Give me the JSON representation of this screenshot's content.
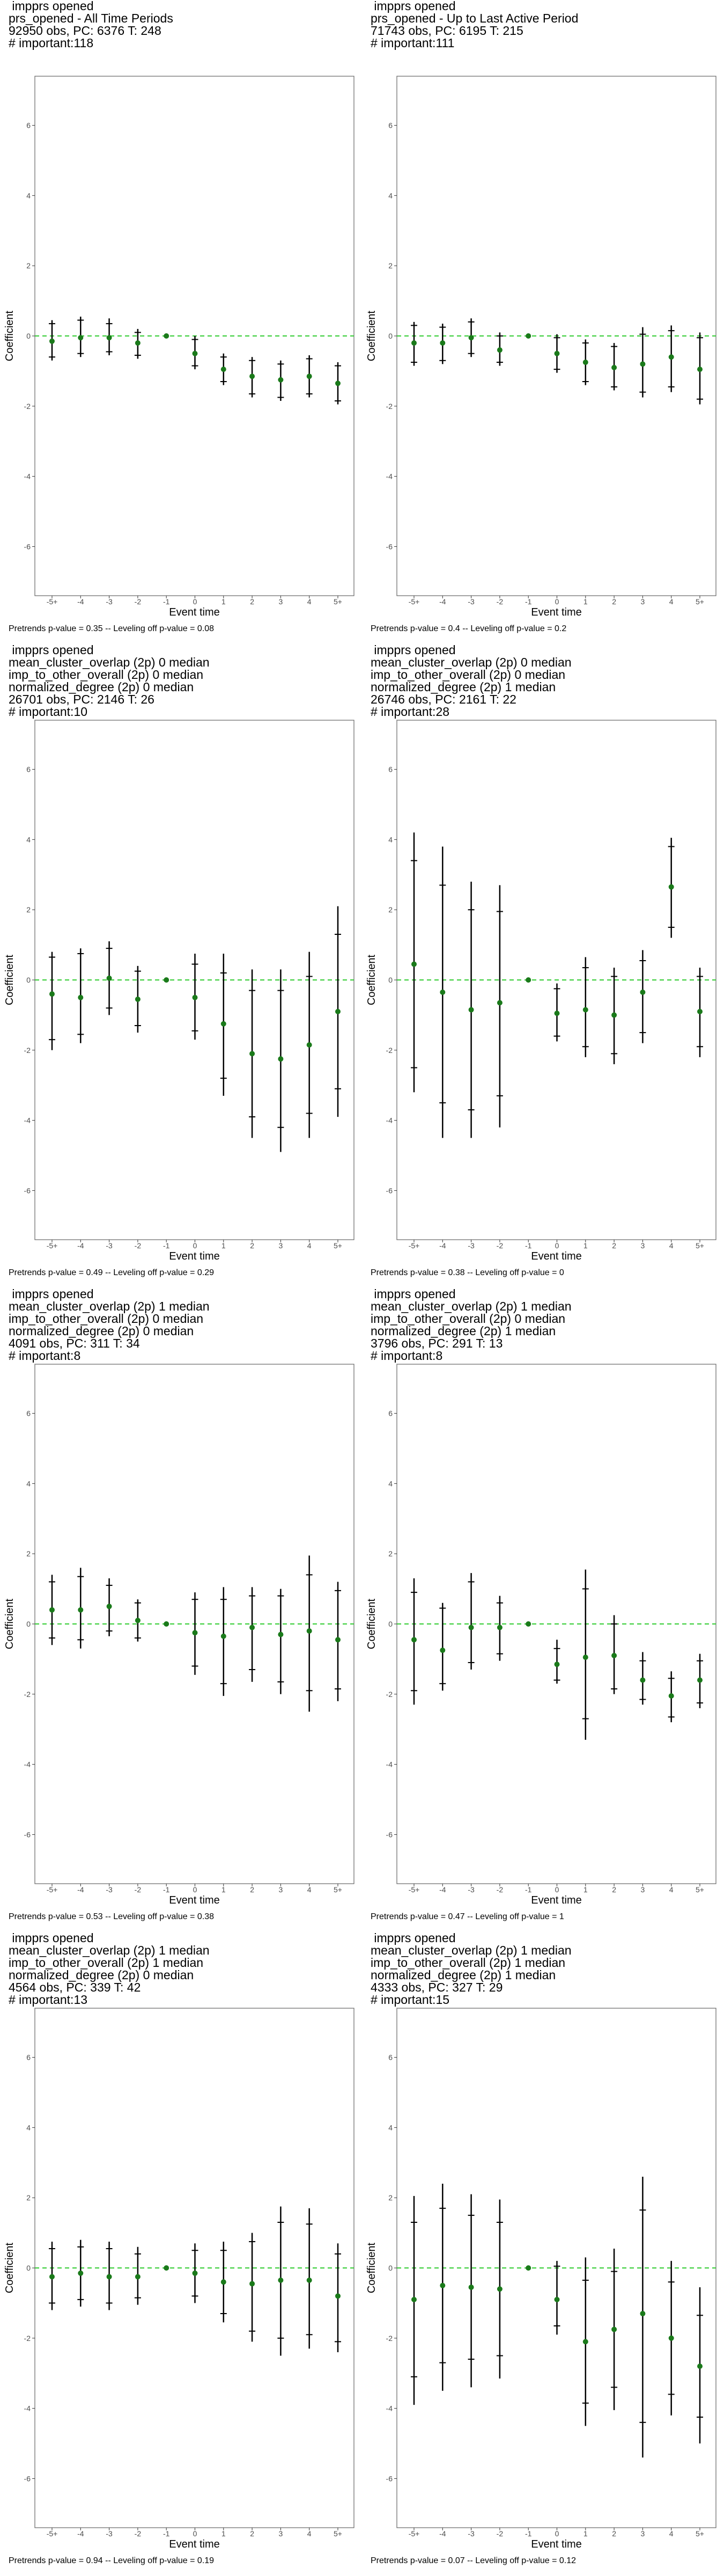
{
  "axis_common": {
    "xlabel": "Event time",
    "ylabel": "Coefficient",
    "x_ticks": [
      "-5+",
      "-4",
      "-3",
      "-2",
      "-1",
      "0",
      "1",
      "2",
      "3",
      "4",
      "5+"
    ],
    "y_ticks": [
      6,
      4,
      2,
      0,
      -2,
      -4,
      -6
    ],
    "ylim": [
      -7.4,
      7.4
    ]
  },
  "colors": {
    "point": "#1a7a1a",
    "zero_line": "#33cc33",
    "bar": "#000000",
    "frame": "#666666"
  },
  "chart_data": [
    {
      "type": "scatter",
      "title_lines": [
        " impprs opened",
        "prs_opened - All Time Periods",
        "92950 obs, PC: 6376 T: 248",
        "# important:118"
      ],
      "footer": "Pretrends p-value = 0.35 -- Leveling off p-value = 0.08",
      "coefs": [
        -0.15,
        -0.05,
        -0.05,
        -0.2,
        0,
        -0.5,
        -0.95,
        -1.15,
        -1.25,
        -1.15,
        -1.35
      ],
      "ci95": [
        [
          -0.7,
          0.45
        ],
        [
          -0.6,
          0.55
        ],
        [
          -0.55,
          0.5
        ],
        [
          -0.65,
          0.2
        ],
        [
          0,
          0
        ],
        [
          -0.95,
          0
        ],
        [
          -1.4,
          -0.5
        ],
        [
          -1.75,
          -0.6
        ],
        [
          -1.85,
          -0.7
        ],
        [
          -1.75,
          -0.55
        ],
        [
          -1.95,
          -0.75
        ]
      ],
      "ci90": [
        [
          -0.6,
          0.35
        ],
        [
          -0.5,
          0.45
        ],
        [
          -0.45,
          0.35
        ],
        [
          -0.55,
          0.1
        ],
        [
          0,
          0
        ],
        [
          -0.85,
          -0.1
        ],
        [
          -1.3,
          -0.6
        ],
        [
          -1.65,
          -0.7
        ],
        [
          -1.75,
          -0.8
        ],
        [
          -1.65,
          -0.65
        ],
        [
          -1.85,
          -0.85
        ]
      ]
    },
    {
      "type": "scatter",
      "title_lines": [
        " impprs opened",
        "prs_opened - Up to Last Active Period",
        "71743 obs, PC: 6195 T: 215",
        "# important:111"
      ],
      "footer": "Pretrends p-value = 0.4 -- Leveling off p-value = 0.2",
      "coefs": [
        -0.2,
        -0.2,
        -0.05,
        -0.4,
        0,
        -0.5,
        -0.75,
        -0.9,
        -0.8,
        -0.6,
        -0.95
      ],
      "ci95": [
        [
          -0.85,
          0.4
        ],
        [
          -0.8,
          0.35
        ],
        [
          -0.6,
          0.5
        ],
        [
          -0.85,
          0.1
        ],
        [
          0,
          0
        ],
        [
          -1.05,
          0.05
        ],
        [
          -1.4,
          -0.1
        ],
        [
          -1.55,
          -0.2
        ],
        [
          -1.75,
          0.25
        ],
        [
          -1.6,
          0.3
        ],
        [
          -1.95,
          0.1
        ]
      ],
      "ci90": [
        [
          -0.75,
          0.3
        ],
        [
          -0.7,
          0.25
        ],
        [
          -0.5,
          0.4
        ],
        [
          -0.75,
          0
        ],
        [
          0,
          0
        ],
        [
          -0.95,
          -0.05
        ],
        [
          -1.3,
          -0.2
        ],
        [
          -1.45,
          -0.3
        ],
        [
          -1.6,
          0.05
        ],
        [
          -1.45,
          0.15
        ],
        [
          -1.8,
          -0.05
        ]
      ]
    },
    {
      "type": "scatter",
      "title_lines": [
        " impprs opened",
        "mean_cluster_overlap (2p) 0 median",
        "imp_to_other_overall (2p) 0 median",
        "normalized_degree (2p) 0 median",
        "26701 obs, PC: 2146 T: 26",
        "# important:10"
      ],
      "footer": "Pretrends p-value = 0.49 -- Leveling off p-value = 0.29",
      "coefs": [
        -0.4,
        -0.5,
        0.05,
        -0.55,
        0,
        -0.5,
        -1.25,
        -2.1,
        -2.25,
        -1.85,
        -0.9
      ],
      "ci95": [
        [
          -2.0,
          0.8
        ],
        [
          -1.8,
          0.9
        ],
        [
          -1.0,
          1.1
        ],
        [
          -1.5,
          0.4
        ],
        [
          0,
          0
        ],
        [
          -1.7,
          0.75
        ],
        [
          -3.3,
          0.75
        ],
        [
          -4.5,
          0.3
        ],
        [
          -4.9,
          0.3
        ],
        [
          -4.5,
          0.8
        ],
        [
          -3.9,
          2.1
        ]
      ],
      "ci90": [
        [
          -1.7,
          0.65
        ],
        [
          -1.55,
          0.75
        ],
        [
          -0.8,
          0.9
        ],
        [
          -1.3,
          0.25
        ],
        [
          0,
          0
        ],
        [
          -1.45,
          0.45
        ],
        [
          -2.8,
          0.2
        ],
        [
          -3.9,
          -0.3
        ],
        [
          -4.2,
          -0.3
        ],
        [
          -3.8,
          0.1
        ],
        [
          -3.1,
          1.3
        ]
      ]
    },
    {
      "type": "scatter",
      "title_lines": [
        " impprs opened",
        "mean_cluster_overlap (2p) 0 median",
        "imp_to_other_overall (2p) 0 median",
        "normalized_degree (2p) 1 median",
        "26746 obs, PC: 2161 T: 22",
        "# important:28"
      ],
      "footer": "Pretrends p-value = 0.38 -- Leveling off p-value = 0",
      "coefs": [
        0.45,
        -0.35,
        -0.85,
        -0.65,
        0,
        -0.95,
        -0.85,
        -1.0,
        -0.35,
        2.65,
        -0.9
      ],
      "ci95": [
        [
          -3.2,
          4.2
        ],
        [
          -4.5,
          3.8
        ],
        [
          -4.5,
          2.8
        ],
        [
          -4.2,
          2.7
        ],
        [
          0,
          0
        ],
        [
          -1.75,
          -0.1
        ],
        [
          -2.2,
          0.65
        ],
        [
          -2.4,
          0.35
        ],
        [
          -1.8,
          0.85
        ],
        [
          1.2,
          4.05
        ],
        [
          -2.2,
          0.35
        ]
      ],
      "ci90": [
        [
          -2.5,
          3.4
        ],
        [
          -3.5,
          2.7
        ],
        [
          -3.7,
          2.0
        ],
        [
          -3.3,
          1.95
        ],
        [
          0,
          0
        ],
        [
          -1.6,
          -0.25
        ],
        [
          -1.9,
          0.35
        ],
        [
          -2.1,
          0.1
        ],
        [
          -1.5,
          0.55
        ],
        [
          1.5,
          3.8
        ],
        [
          -1.9,
          0.1
        ]
      ]
    },
    {
      "type": "scatter",
      "title_lines": [
        " impprs opened",
        "mean_cluster_overlap (2p) 1 median",
        "imp_to_other_overall (2p) 0 median",
        "normalized_degree (2p) 0 median",
        "4091 obs, PC: 311 T: 34",
        "# important:8"
      ],
      "footer": "Pretrends p-value = 0.53 -- Leveling off p-value = 0.38",
      "coefs": [
        0.4,
        0.4,
        0.5,
        0.1,
        0,
        -0.25,
        -0.35,
        -0.1,
        -0.3,
        -0.2,
        -0.45
      ],
      "ci95": [
        [
          -0.6,
          1.4
        ],
        [
          -0.7,
          1.6
        ],
        [
          -0.35,
          1.3
        ],
        [
          -0.5,
          0.7
        ],
        [
          0,
          0
        ],
        [
          -1.45,
          0.9
        ],
        [
          -2.05,
          1.05
        ],
        [
          -1.65,
          1.05
        ],
        [
          -2.0,
          1.0
        ],
        [
          -2.5,
          1.95
        ],
        [
          -2.2,
          1.2
        ]
      ],
      "ci90": [
        [
          -0.4,
          1.2
        ],
        [
          -0.45,
          1.35
        ],
        [
          -0.2,
          1.1
        ],
        [
          -0.4,
          0.6
        ],
        [
          0,
          0
        ],
        [
          -1.2,
          0.7
        ],
        [
          -1.7,
          0.7
        ],
        [
          -1.3,
          0.8
        ],
        [
          -1.65,
          0.8
        ],
        [
          -1.9,
          1.4
        ],
        [
          -1.85,
          0.95
        ]
      ]
    },
    {
      "type": "scatter",
      "title_lines": [
        " impprs opened",
        "mean_cluster_overlap (2p) 1 median",
        "imp_to_other_overall (2p) 0 median",
        "normalized_degree (2p) 1 median",
        "3796 obs, PC: 291 T: 13",
        "# important:8"
      ],
      "footer": "Pretrends p-value = 0.47 -- Leveling off p-value = 1",
      "coefs": [
        -0.45,
        -0.75,
        -0.1,
        -0.1,
        0,
        -1.15,
        -0.95,
        -0.9,
        -1.6,
        -2.05,
        -1.6
      ],
      "ci95": [
        [
          -2.3,
          1.3
        ],
        [
          -1.9,
          0.6
        ],
        [
          -1.3,
          1.45
        ],
        [
          -1.05,
          0.8
        ],
        [
          0,
          0
        ],
        [
          -1.7,
          -0.45
        ],
        [
          -3.3,
          1.55
        ],
        [
          -2.0,
          0.25
        ],
        [
          -2.3,
          -0.8
        ],
        [
          -2.8,
          -1.35
        ],
        [
          -2.4,
          -0.85
        ]
      ],
      "ci90": [
        [
          -1.9,
          0.9
        ],
        [
          -1.7,
          0.45
        ],
        [
          -1.1,
          1.2
        ],
        [
          -0.85,
          0.6
        ],
        [
          0,
          0
        ],
        [
          -1.6,
          -0.7
        ],
        [
          -2.7,
          1.0
        ],
        [
          -1.85,
          0
        ],
        [
          -2.15,
          -1.05
        ],
        [
          -2.65,
          -1.55
        ],
        [
          -2.25,
          -1.05
        ]
      ]
    },
    {
      "type": "scatter",
      "title_lines": [
        " impprs opened",
        "mean_cluster_overlap (2p) 1 median",
        "imp_to_other_overall (2p) 1 median",
        "normalized_degree (2p) 0 median",
        "4564 obs, PC: 339 T: 42",
        "# important:13"
      ],
      "footer": "Pretrends p-value = 0.94 -- Leveling off p-value = 0.19",
      "coefs": [
        -0.25,
        -0.15,
        -0.25,
        -0.25,
        0,
        -0.15,
        -0.4,
        -0.45,
        -0.35,
        -0.35,
        -0.8
      ],
      "ci95": [
        [
          -1.2,
          0.75
        ],
        [
          -1.1,
          0.8
        ],
        [
          -1.2,
          0.75
        ],
        [
          -1.05,
          0.6
        ],
        [
          0,
          0
        ],
        [
          -1.0,
          0.7
        ],
        [
          -1.55,
          0.75
        ],
        [
          -2.1,
          1.0
        ],
        [
          -2.5,
          1.75
        ],
        [
          -2.3,
          1.7
        ],
        [
          -2.4,
          0.7
        ]
      ],
      "ci90": [
        [
          -1.0,
          0.55
        ],
        [
          -0.9,
          0.6
        ],
        [
          -1.0,
          0.55
        ],
        [
          -0.85,
          0.4
        ],
        [
          0,
          0
        ],
        [
          -0.8,
          0.5
        ],
        [
          -1.3,
          0.5
        ],
        [
          -1.8,
          0.75
        ],
        [
          -2.0,
          1.3
        ],
        [
          -1.9,
          1.25
        ],
        [
          -2.1,
          0.4
        ]
      ]
    },
    {
      "type": "scatter",
      "title_lines": [
        " impprs opened",
        "mean_cluster_overlap (2p) 1 median",
        "imp_to_other_overall (2p) 1 median",
        "normalized_degree (2p) 1 median",
        "4333 obs, PC: 327 T: 29",
        "# important:15"
      ],
      "footer": "Pretrends p-value = 0.07 -- Leveling off p-value = 0.12",
      "coefs": [
        -0.9,
        -0.5,
        -0.55,
        -0.6,
        0,
        -0.9,
        -2.1,
        -1.75,
        -1.3,
        -2.0,
        -2.8
      ],
      "ci95": [
        [
          -3.9,
          2.05
        ],
        [
          -3.5,
          2.4
        ],
        [
          -3.4,
          2.1
        ],
        [
          -3.15,
          1.95
        ],
        [
          0,
          0
        ],
        [
          -1.9,
          0.2
        ],
        [
          -4.5,
          0.3
        ],
        [
          -4.05,
          0.55
        ],
        [
          -5.4,
          2.6
        ],
        [
          -4.2,
          0.2
        ],
        [
          -5.0,
          -0.55
        ]
      ],
      "ci90": [
        [
          -3.1,
          1.3
        ],
        [
          -2.7,
          1.7
        ],
        [
          -2.6,
          1.5
        ],
        [
          -2.5,
          1.3
        ],
        [
          0,
          0
        ],
        [
          -1.65,
          0.05
        ],
        [
          -3.85,
          -0.35
        ],
        [
          -3.4,
          -0.1
        ],
        [
          -4.4,
          1.65
        ],
        [
          -3.6,
          -0.4
        ],
        [
          -4.25,
          -1.35
        ]
      ]
    }
  ]
}
